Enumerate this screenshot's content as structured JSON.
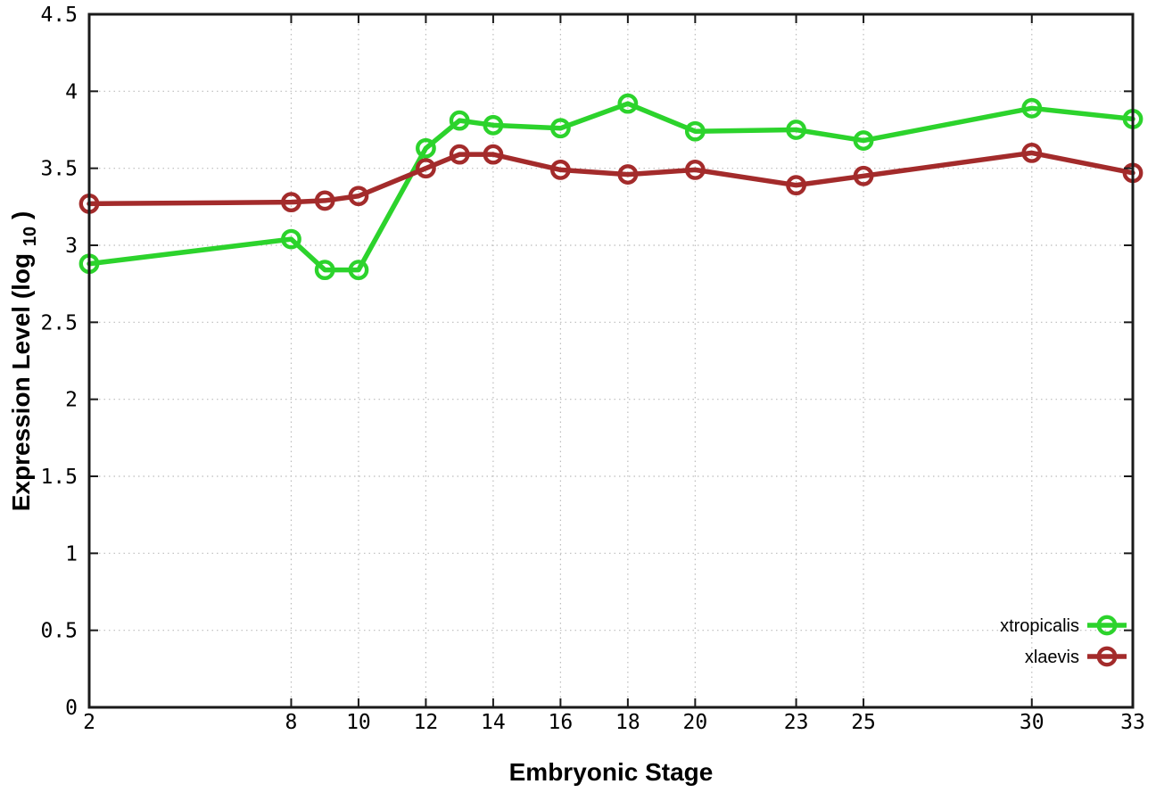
{
  "chart_data": {
    "type": "line",
    "title": "",
    "xlabel": "Embryonic Stage",
    "ylabel": "Expression Level (log10)",
    "ylabel_parts": {
      "prefix": "Expression Level (log",
      "sub": "10",
      "suffix": ")"
    },
    "xlim": [
      2,
      33
    ],
    "ylim": [
      0,
      4.5
    ],
    "x_tick_values": [
      2,
      8,
      10,
      12,
      14,
      16,
      18,
      20,
      23,
      25,
      30,
      33
    ],
    "x_tick_labels": [
      "2",
      "8",
      "10",
      "12",
      "14",
      "16",
      "18",
      "20",
      "23",
      "25",
      "30",
      "33"
    ],
    "y_tick_values": [
      0,
      0.5,
      1,
      1.5,
      2,
      2.5,
      3,
      3.5,
      4,
      4.5
    ],
    "y_tick_labels": [
      "0",
      "0.5",
      "1",
      "1.5",
      "2",
      "2.5",
      "3",
      "3.5",
      "4",
      "4.5"
    ],
    "grid": true,
    "legend_position": "inside-bottom-right",
    "x": [
      2,
      8,
      9,
      10,
      12,
      13,
      14,
      16,
      18,
      20,
      23,
      25,
      30,
      33
    ],
    "series": [
      {
        "name": "xtropicalis",
        "color": "#2cd32c",
        "values": [
          2.88,
          3.04,
          2.84,
          2.84,
          3.63,
          3.81,
          3.78,
          3.76,
          3.92,
          3.74,
          3.75,
          3.68,
          3.89,
          3.82
        ]
      },
      {
        "name": "xlaevis",
        "color": "#a32b2b",
        "values": [
          3.27,
          3.28,
          3.29,
          3.32,
          3.5,
          3.59,
          3.59,
          3.49,
          3.46,
          3.49,
          3.39,
          3.45,
          3.6,
          3.47
        ]
      }
    ],
    "style": {
      "grid_color": "#bcbcbc",
      "axis_color": "#1a1a1a",
      "background": "#ffffff",
      "line_width": 5.5,
      "marker_radius": 9.2,
      "marker_stroke": 4.4
    }
  }
}
